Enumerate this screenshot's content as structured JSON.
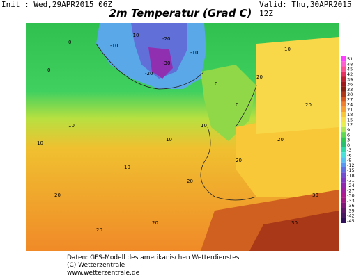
{
  "header": {
    "init": "Init : Wed,29APR2015 06Z",
    "valid": "Valid: Thu,30APR2015 12Z",
    "title": "2m Temperatur (Grad C)"
  },
  "legend": {
    "labels": [
      "51",
      "48",
      "45",
      "42",
      "39",
      "36",
      "33",
      "30",
      "27",
      "24",
      "21",
      "18",
      "15",
      "12",
      "9",
      "6",
      "3",
      "0",
      "-3",
      "-6",
      "-9",
      "-12",
      "-15",
      "-18",
      "-21",
      "-24",
      "-27",
      "-30",
      "-33",
      "-36",
      "-39",
      "-42",
      "-45"
    ],
    "colors": [
      "#ff40ff",
      "#ff60d0",
      "#ff5090",
      "#e83060",
      "#c02030",
      "#a01818",
      "#8a2010",
      "#b03818",
      "#d85820",
      "#f08030",
      "#f8a030",
      "#f8c838",
      "#f8e050",
      "#e8f050",
      "#b0e858",
      "#60d850",
      "#30c850",
      "#28c070",
      "#30d8a8",
      "#48e0d8",
      "#58c0f0",
      "#5898f0",
      "#6070e0",
      "#7050d0",
      "#8038c0",
      "#9028b0",
      "#a020a0",
      "#b01890",
      "#a01880",
      "#801878",
      "#601868",
      "#481860",
      "#301058"
    ]
  },
  "map_labels": [
    {
      "text": "-10"
    },
    {
      "text": "-10"
    },
    {
      "text": "-20"
    },
    {
      "text": "-30"
    },
    {
      "text": "-10"
    },
    {
      "text": "-20"
    },
    {
      "text": "0"
    },
    {
      "text": "0"
    },
    {
      "text": "0"
    },
    {
      "text": "10"
    },
    {
      "text": "10"
    },
    {
      "text": "10"
    },
    {
      "text": "10"
    },
    {
      "text": "20"
    },
    {
      "text": "20"
    },
    {
      "text": "20"
    },
    {
      "text": "20"
    },
    {
      "text": "20"
    },
    {
      "text": "20"
    },
    {
      "text": "20"
    },
    {
      "text": "30"
    },
    {
      "text": "30"
    },
    {
      "text": "20"
    },
    {
      "text": "10"
    },
    {
      "text": "0"
    },
    {
      "text": "10"
    }
  ],
  "credits": [
    "Daten: GFS-Modell des amerikanischen Wetterdienstes",
    "(C) Wetterzentrale",
    "www.wetterzentrale.de"
  ]
}
